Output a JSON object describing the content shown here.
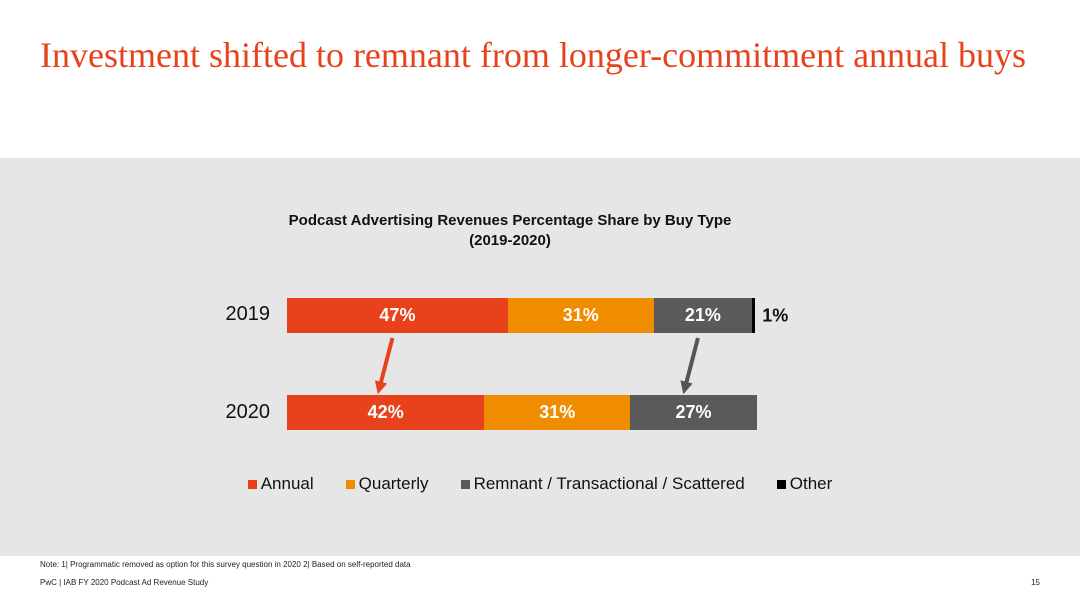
{
  "slide": {
    "title": "Investment shifted to remnant from longer-commitment annual buys",
    "note": "Note: 1| Programmatic removed as option for this survey question in 2020  2| Based on self-reported data",
    "footer": "PwC  |  IAB FY 2020 Podcast Ad Revenue Study",
    "page_number": "15"
  },
  "chart_data": {
    "type": "bar",
    "orientation": "horizontal",
    "stacked": true,
    "title": "Podcast Advertising Revenues Percentage Share by Buy Type",
    "subtitle": "(2019-2020)",
    "categories": [
      "2019",
      "2020"
    ],
    "series": [
      {
        "name": "Annual",
        "values": [
          47,
          42
        ],
        "labels": [
          "47%",
          "42%"
        ],
        "color": "#e8421c"
      },
      {
        "name": "Quarterly",
        "values": [
          31,
          31
        ],
        "labels": [
          "31%",
          "31%"
        ],
        "color": "#f08c00"
      },
      {
        "name": "Remnant / Transactional / Scattered",
        "values": [
          21,
          27
        ],
        "labels": [
          "21%",
          "27%"
        ],
        "color": "#5a5a5a"
      },
      {
        "name": "Other",
        "values": [
          1,
          0
        ],
        "labels": [
          "1%",
          ""
        ],
        "color": "#000000"
      }
    ],
    "xlim": [
      0,
      100
    ],
    "grid": false,
    "legend_position": "bottom",
    "annotations": [
      {
        "type": "arrow",
        "series": "Annual",
        "from": "2019",
        "to": "2020",
        "color": "#e8421c"
      },
      {
        "type": "arrow",
        "series": "Remnant / Transactional / Scattered",
        "from": "2019",
        "to": "2020",
        "color": "#555555"
      }
    ]
  }
}
